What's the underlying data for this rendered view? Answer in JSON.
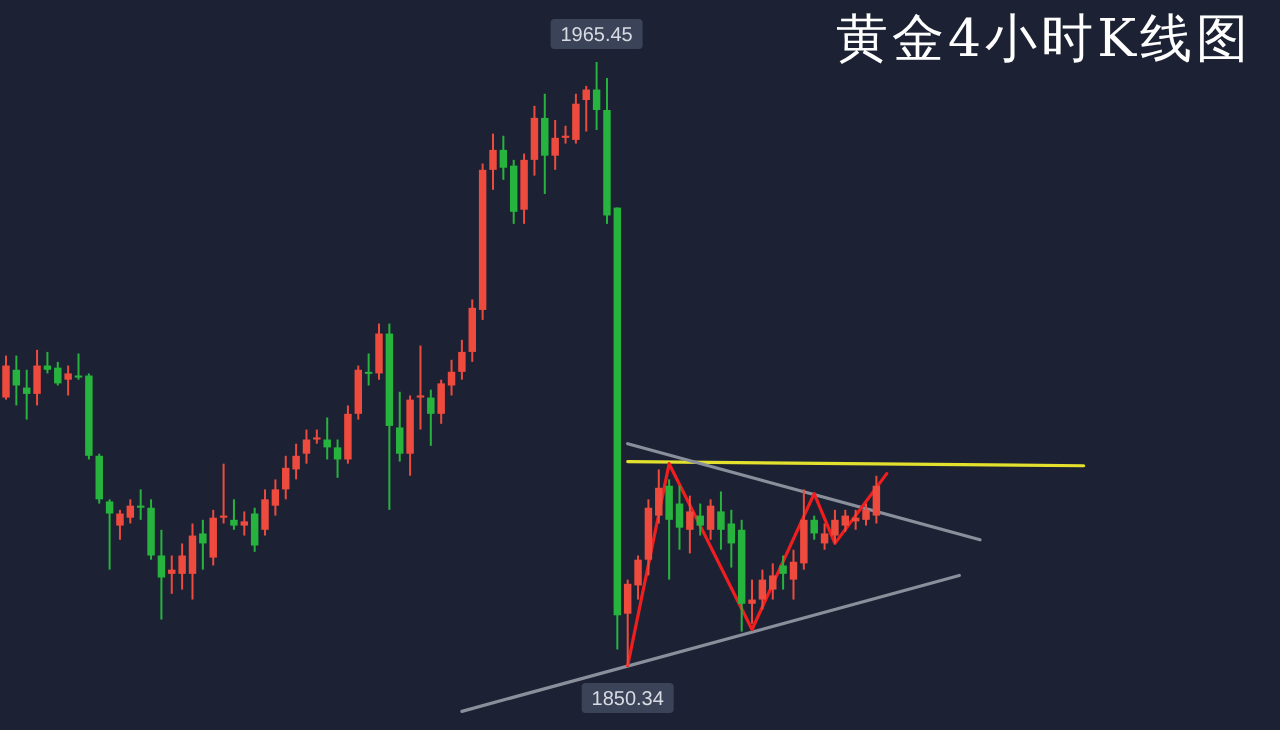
{
  "chart_data": {
    "type": "candlestick",
    "title": "黄金4小时K线图",
    "categories": [
      null,
      null,
      null,
      null,
      null,
      null,
      null,
      null,
      null,
      null,
      null,
      null,
      null,
      null,
      null,
      null,
      null,
      null,
      null,
      null,
      null,
      null,
      null,
      null,
      null,
      null,
      null,
      null,
      null,
      null,
      null,
      null,
      null,
      null,
      null,
      null,
      null,
      null,
      null,
      null,
      null,
      null,
      null,
      null,
      null,
      null,
      null,
      null,
      null,
      null,
      null,
      null,
      null,
      null,
      null,
      null,
      null,
      null,
      null,
      null,
      null,
      null,
      null,
      null,
      null,
      null,
      null,
      null,
      null,
      null,
      null,
      null,
      null,
      null,
      null,
      null,
      null,
      null,
      null,
      null,
      null,
      null,
      null,
      null,
      null,
      null,
      null,
      null,
      null,
      null,
      null,
      null,
      null,
      null,
      null,
      null,
      null,
      null,
      null,
      null,
      null,
      null,
      null,
      null,
      null
    ],
    "ohlc": [
      [
        1901.5,
        1909.5,
        1901.1,
        1907.6
      ],
      [
        1906.8,
        1909.5,
        1900.0,
        1903.8
      ],
      [
        1903.4,
        1906.8,
        1897.3,
        1902.2
      ],
      [
        1902.2,
        1910.6,
        1900.0,
        1907.6
      ],
      [
        1907.6,
        1910.2,
        1906.1,
        1906.8
      ],
      [
        1907.2,
        1908.3,
        1903.8,
        1904.2
      ],
      [
        1904.9,
        1907.6,
        1901.9,
        1906.1
      ],
      [
        1905.7,
        1909.9,
        1904.9,
        1905.3
      ],
      [
        1905.7,
        1906.1,
        1889.7,
        1890.4
      ],
      [
        1890.4,
        1890.8,
        1881.3,
        1882.1
      ],
      [
        1881.7,
        1882.1,
        1868.7,
        1879.4
      ],
      [
        1877.1,
        1880.1,
        1874.4,
        1879.4
      ],
      [
        1878.6,
        1882.1,
        1877.5,
        1880.9
      ],
      [
        1880.9,
        1884.0,
        1878.2,
        1880.5
      ],
      [
        1880.5,
        1882.1,
        1870.6,
        1871.4
      ],
      [
        1871.4,
        1876.3,
        1859.2,
        1867.2
      ],
      [
        1867.9,
        1871.4,
        1864.1,
        1868.7
      ],
      [
        1867.9,
        1873.7,
        1864.9,
        1871.4
      ],
      [
        1867.9,
        1877.5,
        1863.0,
        1875.2
      ],
      [
        1875.6,
        1878.2,
        1868.7,
        1873.7
      ],
      [
        1871.0,
        1880.1,
        1869.5,
        1878.6
      ],
      [
        1878.6,
        1888.9,
        1877.5,
        1879.0
      ],
      [
        1878.2,
        1882.1,
        1876.3,
        1877.1
      ],
      [
        1877.1,
        1879.8,
        1875.2,
        1877.9
      ],
      [
        1879.4,
        1880.5,
        1872.1,
        1873.3
      ],
      [
        1876.3,
        1884.0,
        1875.2,
        1882.1
      ],
      [
        1880.9,
        1885.9,
        1879.0,
        1884.0
      ],
      [
        1884.0,
        1890.4,
        1882.1,
        1888.1
      ],
      [
        1887.8,
        1892.7,
        1885.9,
        1890.4
      ],
      [
        1890.8,
        1895.4,
        1888.9,
        1893.5
      ],
      [
        1893.5,
        1895.4,
        1892.7,
        1893.9
      ],
      [
        1893.5,
        1897.7,
        1889.7,
        1892.0
      ],
      [
        1892.0,
        1893.5,
        1886.2,
        1889.7
      ],
      [
        1889.7,
        1900.0,
        1888.9,
        1898.4
      ],
      [
        1898.4,
        1907.6,
        1897.3,
        1906.8
      ],
      [
        1906.4,
        1909.9,
        1903.8,
        1906.1
      ],
      [
        1906.1,
        1915.6,
        1904.9,
        1913.7
      ],
      [
        1913.7,
        1915.6,
        1880.1,
        1896.1
      ],
      [
        1895.8,
        1902.6,
        1889.3,
        1890.8
      ],
      [
        1890.8,
        1901.9,
        1886.6,
        1901.1
      ],
      [
        1901.5,
        1911.4,
        1895.4,
        1901.9
      ],
      [
        1901.5,
        1903.0,
        1892.3,
        1898.4
      ],
      [
        1898.4,
        1904.9,
        1896.5,
        1904.2
      ],
      [
        1903.8,
        1908.7,
        1901.9,
        1906.4
      ],
      [
        1906.4,
        1912.5,
        1904.9,
        1910.2
      ],
      [
        1910.2,
        1920.2,
        1908.3,
        1918.6
      ],
      [
        1918.2,
        1946.1,
        1916.3,
        1944.9
      ],
      [
        1944.9,
        1951.8,
        1941.1,
        1948.7
      ],
      [
        1948.7,
        1951.4,
        1943.0,
        1945.3
      ],
      [
        1945.7,
        1946.8,
        1934.6,
        1936.9
      ],
      [
        1937.3,
        1948.0,
        1934.6,
        1946.8
      ],
      [
        1946.8,
        1957.1,
        1943.8,
        1954.8
      ],
      [
        1954.8,
        1959.4,
        1940.3,
        1947.6
      ],
      [
        1947.6,
        1954.4,
        1944.9,
        1951.0
      ],
      [
        1951.0,
        1953.3,
        1949.9,
        1951.4
      ],
      [
        1950.6,
        1959.4,
        1949.9,
        1957.5
      ],
      [
        1958.2,
        1960.9,
        1952.2,
        1960.2
      ],
      [
        1960.2,
        1965.45,
        1952.5,
        1956.3
      ],
      [
        1956.3,
        1962.4,
        1934.6,
        1936.2
      ],
      [
        1937.7,
        1937.7,
        1853.5,
        1860.0
      ],
      [
        1860.3,
        1866.8,
        1850.34,
        1866.0
      ],
      [
        1865.7,
        1871.4,
        1863.0,
        1870.6
      ],
      [
        1870.6,
        1882.1,
        1867.6,
        1880.5
      ],
      [
        1879.0,
        1887.8,
        1877.5,
        1884.3
      ],
      [
        1884.7,
        1885.9,
        1866.8,
        1878.2
      ],
      [
        1881.3,
        1884.7,
        1872.5,
        1876.7
      ],
      [
        1876.3,
        1882.8,
        1871.8,
        1879.8
      ],
      [
        1879.0,
        1881.3,
        1875.2,
        1877.1
      ],
      [
        1876.3,
        1882.1,
        1874.4,
        1880.9
      ],
      [
        1879.8,
        1883.6,
        1872.5,
        1876.3
      ],
      [
        1877.5,
        1880.1,
        1869.1,
        1873.7
      ],
      [
        1876.3,
        1878.2,
        1856.9,
        1862.2
      ],
      [
        1862.2,
        1866.8,
        1858.4,
        1863.0
      ],
      [
        1863.0,
        1868.7,
        1861.1,
        1866.8
      ],
      [
        1864.9,
        1869.9,
        1863.0,
        1867.6
      ],
      [
        1869.5,
        1871.4,
        1864.9,
        1867.9
      ],
      [
        1866.8,
        1872.5,
        1863.0,
        1870.2
      ],
      [
        1869.9,
        1884.0,
        1868.7,
        1878.2
      ],
      [
        1878.2,
        1879.0,
        1874.4,
        1875.6
      ],
      [
        1873.7,
        1877.5,
        1872.5,
        1875.6
      ],
      [
        1875.2,
        1880.1,
        1873.7,
        1878.2
      ],
      [
        1877.1,
        1880.1,
        1875.9,
        1879.0
      ],
      [
        1877.9,
        1880.1,
        1876.3,
        1878.6
      ],
      [
        1878.2,
        1881.3,
        1877.1,
        1880.1
      ],
      [
        1879.0,
        1886.6,
        1877.5,
        1884.7
      ],
      null,
      null,
      null,
      null,
      null,
      null,
      null,
      null,
      null,
      null,
      null,
      null,
      null,
      null,
      null,
      null,
      null,
      null,
      null,
      null
    ],
    "colors": [
      "#ee4b3e",
      "#27b43e",
      "#27b43e",
      "#ee4b3e",
      "#27b43e",
      "#27b43e",
      "#ee4b3e",
      "#27b43e",
      "#27b43e",
      "#27b43e",
      "#27b43e",
      "#ee4b3e",
      "#ee4b3e",
      "#27b43e",
      "#27b43e",
      "#27b43e",
      "#ee4b3e",
      "#ee4b3e",
      "#ee4b3e",
      "#27b43e",
      "#ee4b3e",
      "#ee4b3e",
      "#27b43e",
      "#ee4b3e",
      "#27b43e",
      "#ee4b3e",
      "#ee4b3e",
      "#ee4b3e",
      "#ee4b3e",
      "#ee4b3e",
      "#ee4b3e",
      "#27b43e",
      "#27b43e",
      "#ee4b3e",
      "#ee4b3e",
      "#27b43e",
      "#ee4b3e",
      "#27b43e",
      "#27b43e",
      "#ee4b3e",
      "#ee4b3e",
      "#27b43e",
      "#ee4b3e",
      "#ee4b3e",
      "#ee4b3e",
      "#ee4b3e",
      "#ee4b3e",
      "#ee4b3e",
      "#27b43e",
      "#27b43e",
      "#ee4b3e",
      "#ee4b3e",
      "#27b43e",
      "#ee4b3e",
      "#ee4b3e",
      "#ee4b3e",
      "#ee4b3e",
      "#27b43e",
      "#27b43e",
      "#27b43e",
      "#ee4b3e",
      "#ee4b3e",
      "#ee4b3e",
      "#ee4b3e",
      "#27b43e",
      "#27b43e",
      "#ee4b3e",
      "#27b43e",
      "#ee4b3e",
      "#27b43e",
      "#27b43e",
      "#27b43e",
      "#ee4b3e",
      "#ee4b3e",
      "#ee4b3e",
      "#27b43e",
      "#ee4b3e",
      "#ee4b3e",
      "#27b43e",
      "#ee4b3e",
      "#ee4b3e",
      "#ee4b3e",
      "#ee4b3e",
      "#ee4b3e",
      "#ee4b3e",
      null,
      null,
      null,
      null,
      null,
      null,
      null,
      null,
      null,
      null,
      null,
      null,
      null,
      null,
      null,
      null,
      null,
      null,
      null,
      null
    ],
    "series": [
      {
        "type": "line",
        "color": "#e3e02e",
        "values": [
          null,
          null,
          null,
          null,
          null,
          null,
          null,
          null,
          null,
          null,
          null,
          null,
          null,
          null,
          null,
          null,
          null,
          null,
          null,
          null,
          null,
          null,
          null,
          null,
          null,
          null,
          null,
          null,
          null,
          null,
          null,
          null,
          null,
          null,
          null,
          null,
          null,
          null,
          null,
          null,
          null,
          null,
          null,
          null,
          null,
          null,
          null,
          null,
          null,
          null,
          null,
          null,
          null,
          null,
          null,
          null,
          null,
          null,
          null,
          null,
          1889.3,
          null,
          null,
          null,
          null,
          null,
          null,
          null,
          null,
          null,
          null,
          null,
          null,
          null,
          null,
          null,
          null,
          null,
          null,
          null,
          null,
          null,
          null,
          null,
          null,
          null,
          null,
          null,
          null,
          null,
          null,
          null,
          null,
          null,
          null,
          null,
          null,
          null,
          null,
          null,
          null,
          null,
          null,
          null,
          1888.5
        ]
      },
      {
        "type": "line",
        "color": "#8a8f9c",
        "values": [
          null,
          null,
          null,
          null,
          null,
          null,
          null,
          null,
          null,
          null,
          null,
          null,
          null,
          null,
          null,
          null,
          null,
          null,
          null,
          null,
          null,
          null,
          null,
          null,
          null,
          null,
          null,
          null,
          null,
          null,
          null,
          null,
          null,
          null,
          null,
          null,
          null,
          null,
          null,
          null,
          null,
          null,
          null,
          null,
          null,
          null,
          null,
          null,
          null,
          null,
          null,
          null,
          null,
          null,
          null,
          null,
          null,
          null,
          null,
          null,
          1892.7,
          null,
          null,
          null,
          null,
          null,
          null,
          null,
          null,
          null,
          null,
          null,
          null,
          null,
          null,
          null,
          null,
          null,
          null,
          null,
          null,
          null,
          null,
          null,
          null,
          null,
          null,
          null,
          null,
          null,
          null,
          null,
          null,
          null,
          1874.4,
          null,
          null,
          null,
          null,
          null,
          null,
          null,
          null,
          null,
          null
        ]
      },
      {
        "type": "line",
        "color": "#8a8f9c",
        "values": [
          null,
          null,
          null,
          null,
          null,
          null,
          null,
          null,
          null,
          null,
          null,
          null,
          null,
          null,
          null,
          null,
          null,
          null,
          null,
          null,
          null,
          null,
          null,
          null,
          null,
          null,
          null,
          null,
          null,
          null,
          null,
          null,
          null,
          null,
          null,
          null,
          null,
          null,
          null,
          null,
          null,
          null,
          null,
          null,
          1841.7,
          null,
          null,
          null,
          null,
          null,
          null,
          null,
          null,
          null,
          null,
          null,
          null,
          null,
          null,
          null,
          null,
          null,
          null,
          null,
          null,
          null,
          null,
          null,
          null,
          null,
          null,
          null,
          null,
          null,
          null,
          null,
          null,
          null,
          null,
          null,
          null,
          null,
          null,
          null,
          null,
          null,
          null,
          null,
          null,
          null,
          null,
          null,
          1867.6,
          null,
          null,
          null,
          null,
          null,
          null,
          null,
          null,
          null,
          null,
          null,
          null
        ]
      },
      {
        "type": "line",
        "color": "#f01e1e",
        "values": [
          null,
          null,
          null,
          null,
          null,
          null,
          null,
          null,
          null,
          null,
          null,
          null,
          null,
          null,
          null,
          null,
          null,
          null,
          null,
          null,
          null,
          null,
          null,
          null,
          null,
          null,
          null,
          null,
          null,
          null,
          null,
          null,
          null,
          null,
          null,
          null,
          null,
          null,
          null,
          null,
          null,
          null,
          null,
          null,
          null,
          null,
          null,
          null,
          null,
          null,
          null,
          null,
          null,
          null,
          null,
          null,
          null,
          null,
          null,
          null,
          1850.4,
          null,
          null,
          null,
          1888.9,
          null,
          null,
          null,
          null,
          null,
          null,
          null,
          1857.3,
          null,
          null,
          null,
          null,
          null,
          1883.2,
          null,
          1873.7,
          null,
          null,
          null,
          null,
          1887.0,
          null,
          null,
          null,
          null,
          null,
          null,
          null,
          null,
          null,
          null,
          null,
          null,
          null,
          null,
          null,
          null,
          null,
          null,
          null
        ]
      }
    ],
    "annotations": [
      {
        "text": "1965.45",
        "y": 1965.45
      },
      {
        "text": "1850.34",
        "y": 1850.34
      }
    ]
  }
}
